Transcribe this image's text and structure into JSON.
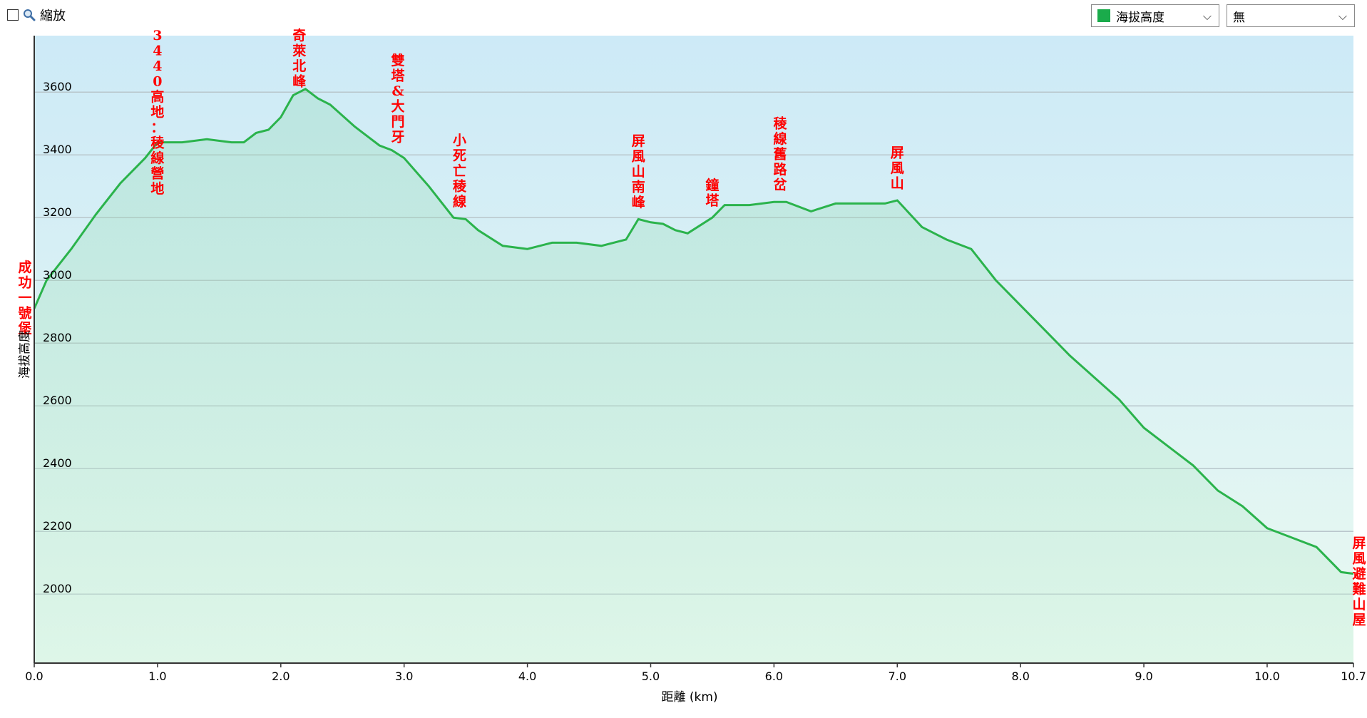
{
  "toolbar": {
    "zoom_label": "縮放",
    "series_select": {
      "value": "海拔高度",
      "color": "#1aab4b"
    },
    "second_select": {
      "value": "無"
    }
  },
  "colors": {
    "line": "#2bb34c",
    "label_red": "#ff0000",
    "bg_top": "#cdeaf7",
    "bg_bottom": "#e9f9f1"
  },
  "chart_data": {
    "type": "area",
    "xlabel": "距離 (km)",
    "ylabel": "海拔高度",
    "xlim": [
      0,
      10.7
    ],
    "ylim": [
      1780,
      3780
    ],
    "xticks": [
      "0.0",
      "1.0",
      "2.0",
      "3.0",
      "4.0",
      "5.0",
      "6.0",
      "7.0",
      "8.0",
      "9.0",
      "10.0",
      "10.7"
    ],
    "yticks": [
      "2000",
      "2200",
      "2400",
      "2600",
      "2800",
      "3000",
      "3200",
      "3400",
      "3600"
    ],
    "grid": true,
    "series": [
      {
        "x": [
          0,
          0.1,
          0.3,
          0.5,
          0.7,
          0.9,
          1.0,
          1.2,
          1.4,
          1.6,
          1.7,
          1.8,
          1.9,
          2.0,
          2.1,
          2.2,
          2.3,
          2.4,
          2.6,
          2.8,
          2.9,
          3.0,
          3.2,
          3.4,
          3.5,
          3.6,
          3.8,
          4.0,
          4.2,
          4.4,
          4.6,
          4.8,
          4.9,
          5.0,
          5.1,
          5.2,
          5.3,
          5.5,
          5.6,
          5.8,
          6.0,
          6.1,
          6.3,
          6.5,
          6.7,
          6.9,
          7.0,
          7.2,
          7.4,
          7.6,
          7.8,
          8.0,
          8.2,
          8.4,
          8.6,
          8.8,
          9.0,
          9.2,
          9.4,
          9.6,
          9.8,
          10.0,
          10.2,
          10.4,
          10.6,
          10.7
        ],
        "y": [
          2910,
          3000,
          3100,
          3210,
          3310,
          3390,
          3440,
          3440,
          3450,
          3440,
          3440,
          3470,
          3480,
          3520,
          3590,
          3610,
          3580,
          3560,
          3490,
          3430,
          3415,
          3390,
          3300,
          3200,
          3195,
          3160,
          3110,
          3100,
          3120,
          3120,
          3110,
          3130,
          3195,
          3185,
          3180,
          3160,
          3150,
          3200,
          3240,
          3240,
          3250,
          3250,
          3220,
          3245,
          3245,
          3245,
          3255,
          3170,
          3130,
          3100,
          3000,
          2920,
          2840,
          2760,
          2690,
          2620,
          2530,
          2470,
          2410,
          2330,
          2280,
          2210,
          2180,
          2150,
          2070,
          2065
        ]
      }
    ],
    "annotations": [
      {
        "text": "成功一號堡",
        "x": 0.0
      },
      {
        "text": "3440高地：稜線營地",
        "x": 1.0
      },
      {
        "text": "奇萊北峰",
        "x": 2.15
      },
      {
        "text": "雙塔&大門牙",
        "x": 2.95
      },
      {
        "text": "小死亡稜線",
        "x": 3.45
      },
      {
        "text": "屏風山南峰",
        "x": 4.9
      },
      {
        "text": "鐘塔",
        "x": 5.5
      },
      {
        "text": "稜線舊路岔",
        "x": 6.05
      },
      {
        "text": "屏風山",
        "x": 7.0
      },
      {
        "text": "屏風避難山屋",
        "x": 10.7
      }
    ]
  }
}
